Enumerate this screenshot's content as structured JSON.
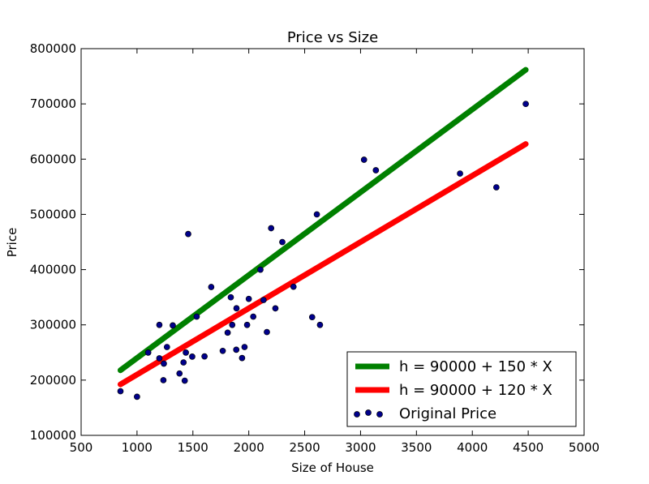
{
  "chart_data": {
    "type": "scatter",
    "title": "Price vs Size",
    "xlabel": "Size of House",
    "ylabel": "Price",
    "xlim": [
      500,
      5000
    ],
    "ylim": [
      100000,
      800000
    ],
    "xticks": [
      500,
      1000,
      1500,
      2000,
      2500,
      3000,
      3500,
      4000,
      4500,
      5000
    ],
    "yticks": [
      100000,
      200000,
      300000,
      400000,
      500000,
      600000,
      700000,
      800000
    ],
    "grid": false,
    "legend_position": "lower-right",
    "series": [
      {
        "name": "h = 90000 + 150 * X",
        "kind": "line",
        "color": "#008000",
        "x": [
          852,
          4478
        ],
        "y": [
          217800,
          761700
        ]
      },
      {
        "name": "h = 90000 + 120 * X",
        "kind": "line",
        "color": "#ff0000",
        "x": [
          852,
          4478
        ],
        "y": [
          192240,
          627360
        ]
      },
      {
        "name": "Original Price",
        "kind": "scatter",
        "color": "#00008b",
        "points": [
          [
            852,
            179900
          ],
          [
            1000,
            169900
          ],
          [
            1100,
            249900
          ],
          [
            1200,
            299900
          ],
          [
            1200,
            239500
          ],
          [
            1236,
            199900
          ],
          [
            1240,
            229900
          ],
          [
            1268,
            259900
          ],
          [
            1320,
            299000
          ],
          [
            1380,
            212000
          ],
          [
            1416,
            232000
          ],
          [
            1427,
            198999
          ],
          [
            1437,
            249900
          ],
          [
            1458,
            464500
          ],
          [
            1494,
            242500
          ],
          [
            1534,
            314900
          ],
          [
            1604,
            242900
          ],
          [
            1664,
            368500
          ],
          [
            1767,
            252900
          ],
          [
            1811,
            285900
          ],
          [
            1839,
            349900
          ],
          [
            1852,
            299900
          ],
          [
            1888,
            255000
          ],
          [
            1890,
            329999
          ],
          [
            1940,
            239999
          ],
          [
            1962,
            259900
          ],
          [
            1985,
            299900
          ],
          [
            2000,
            347000
          ],
          [
            2040,
            314900
          ],
          [
            2104,
            399900
          ],
          [
            2132,
            345000
          ],
          [
            2162,
            287000
          ],
          [
            2200,
            475000
          ],
          [
            2238,
            329900
          ],
          [
            2300,
            449900
          ],
          [
            2400,
            369000
          ],
          [
            2567,
            314000
          ],
          [
            2609,
            499998
          ],
          [
            2637,
            299900
          ],
          [
            3031,
            599000
          ],
          [
            3137,
            579900
          ],
          [
            3890,
            573900
          ],
          [
            4215,
            549000
          ],
          [
            4478,
            699900
          ]
        ]
      }
    ]
  }
}
